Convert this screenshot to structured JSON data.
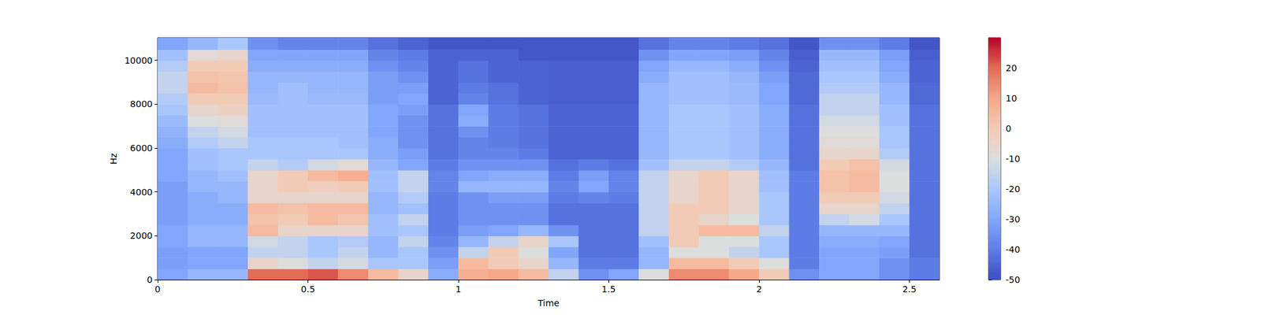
{
  "chart_data": {
    "type": "heatmap",
    "xlabel": "Time",
    "ylabel": "Hz",
    "xlim": [
      0,
      2.6
    ],
    "xticks": [
      0,
      0.5,
      1,
      1.5,
      2,
      2.5
    ],
    "ylim": [
      0,
      11025
    ],
    "yticks": [
      0,
      2000,
      4000,
      6000,
      8000,
      10000
    ],
    "colorbar": {
      "range": [
        -50,
        30
      ],
      "ticks": [
        -50,
        -40,
        -30,
        -20,
        -10,
        0,
        10,
        20
      ]
    },
    "time_edges": [
      0,
      0.1,
      0.2,
      0.3,
      0.4,
      0.5,
      0.6,
      0.7,
      0.8,
      0.9,
      1.0,
      1.1,
      1.2,
      1.3,
      1.4,
      1.5,
      1.6,
      1.7,
      1.8,
      1.9,
      2.0,
      2.1,
      2.2,
      2.3,
      2.4,
      2.5,
      2.6
    ],
    "freq_edges": [
      0,
      500,
      1000,
      1500,
      2000,
      2500,
      3000,
      3500,
      4000,
      4500,
      5000,
      5500,
      6000,
      6500,
      7000,
      7500,
      8000,
      8500,
      9000,
      9500,
      10000,
      10500,
      11025
    ],
    "values": [
      [
        -30,
        -32,
        -32,
        -30,
        -30,
        -32,
        -32,
        -32,
        -32,
        -30,
        -30,
        -30,
        -28,
        -26,
        -24,
        -20,
        -18,
        -15,
        -15,
        -18,
        -22,
        -30
      ],
      [
        -25,
        -30,
        -30,
        -25,
        -25,
        -28,
        -28,
        -28,
        -25,
        -25,
        -22,
        -22,
        -18,
        -15,
        -10,
        -5,
        0,
        5,
        3,
        0,
        -8,
        -25
      ],
      [
        -25,
        -30,
        -30,
        -25,
        -25,
        -28,
        -28,
        -25,
        -25,
        -22,
        -20,
        -20,
        -15,
        -12,
        -8,
        -3,
        0,
        3,
        2,
        0,
        -5,
        -20
      ],
      [
        20,
        -5,
        -15,
        -12,
        5,
        3,
        5,
        -5,
        -5,
        -5,
        -15,
        -20,
        -20,
        -22,
        -22,
        -22,
        -24,
        -25,
        -25,
        -28,
        -30,
        -35
      ],
      [
        20,
        -10,
        -15,
        -15,
        -5,
        0,
        3,
        -5,
        0,
        0,
        -18,
        -20,
        -20,
        -22,
        -22,
        -22,
        -22,
        -22,
        -25,
        -28,
        -30,
        -38
      ],
      [
        22,
        -15,
        -20,
        -20,
        -5,
        5,
        5,
        -5,
        -2,
        5,
        -12,
        -20,
        -20,
        -22,
        -22,
        -22,
        -24,
        -25,
        -25,
        -28,
        -30,
        -38
      ],
      [
        15,
        -12,
        -15,
        -18,
        -5,
        2,
        5,
        -5,
        0,
        8,
        -8,
        -20,
        -22,
        -22,
        -22,
        -22,
        -24,
        -25,
        -25,
        -28,
        -30,
        -38
      ],
      [
        5,
        -20,
        -25,
        -25,
        -22,
        -22,
        -25,
        -25,
        -22,
        -22,
        -25,
        -28,
        -28,
        -30,
        -30,
        -30,
        -32,
        -32,
        -32,
        -35,
        -38,
        -42
      ],
      [
        -5,
        -20,
        -20,
        -15,
        -20,
        -15,
        -22,
        -18,
        -15,
        -15,
        -30,
        -32,
        -35,
        -35,
        -35,
        -32,
        -30,
        -32,
        -35,
        -38,
        -40,
        -45
      ],
      [
        -28,
        -32,
        -35,
        -38,
        -40,
        -40,
        -40,
        -40,
        -38,
        -38,
        -40,
        -42,
        -42,
        -42,
        -42,
        -42,
        -45,
        -45,
        -45,
        -45,
        -45,
        -48
      ],
      [
        8,
        5,
        -15,
        -25,
        -32,
        -35,
        -35,
        -35,
        -25,
        -30,
        -35,
        -38,
        -38,
        -35,
        -28,
        -30,
        -38,
        -40,
        -42,
        -42,
        -45,
        -48
      ],
      [
        10,
        0,
        0,
        -15,
        -30,
        -35,
        -35,
        -32,
        -25,
        -28,
        -35,
        -38,
        -40,
        -40,
        -40,
        -40,
        -42,
        -42,
        -45,
        -45,
        -45,
        -48
      ],
      [
        5,
        -5,
        -10,
        -5,
        -25,
        -35,
        -35,
        -32,
        -25,
        -28,
        -35,
        -40,
        -42,
        -42,
        -42,
        -42,
        -45,
        -45,
        -45,
        -45,
        -48,
        -48
      ],
      [
        -15,
        -25,
        -30,
        -20,
        -35,
        -42,
        -42,
        -40,
        -38,
        -40,
        -42,
        -45,
        -45,
        -45,
        -45,
        -45,
        -46,
        -46,
        -46,
        -46,
        -48,
        -48
      ],
      [
        -35,
        -40,
        -42,
        -42,
        -42,
        -42,
        -42,
        -38,
        -30,
        -32,
        -40,
        -45,
        -45,
        -45,
        -45,
        -45,
        -46,
        -46,
        -46,
        -46,
        -48,
        -48
      ],
      [
        -30,
        -40,
        -42,
        -42,
        -42,
        -42,
        -42,
        -40,
        -38,
        -38,
        -42,
        -45,
        -45,
        -45,
        -45,
        -45,
        -46,
        -46,
        -46,
        -46,
        -48,
        -48
      ],
      [
        -10,
        -25,
        -25,
        -22,
        -15,
        -15,
        -15,
        -15,
        -15,
        -15,
        -22,
        -25,
        -25,
        -25,
        -25,
        -25,
        -25,
        -25,
        -28,
        -30,
        -35,
        -42
      ],
      [
        15,
        5,
        -10,
        0,
        0,
        0,
        0,
        -5,
        -5,
        -5,
        -15,
        -20,
        -20,
        -20,
        -20,
        -20,
        -22,
        -22,
        -22,
        -25,
        -30,
        -38
      ],
      [
        15,
        5,
        -10,
        -10,
        5,
        -5,
        0,
        0,
        0,
        0,
        -15,
        -20,
        -20,
        -20,
        -20,
        -20,
        -22,
        -22,
        -22,
        -25,
        -30,
        -38
      ],
      [
        10,
        0,
        -15,
        -10,
        5,
        -10,
        -5,
        -5,
        -5,
        -5,
        -18,
        -22,
        -22,
        -22,
        -22,
        -22,
        -24,
        -24,
        -25,
        -28,
        -32,
        -40
      ],
      [
        0,
        -10,
        -20,
        -20,
        -15,
        -20,
        -20,
        -20,
        -22,
        -22,
        -25,
        -28,
        -28,
        -28,
        -28,
        -28,
        -30,
        -30,
        -32,
        -35,
        -38,
        -42
      ],
      [
        -35,
        -40,
        -40,
        -40,
        -40,
        -40,
        -40,
        -40,
        -40,
        -40,
        -42,
        -42,
        -42,
        -42,
        -42,
        -42,
        -44,
        -44,
        -44,
        -45,
        -46,
        -48
      ],
      [
        -30,
        -30,
        -30,
        -28,
        -25,
        -15,
        -5,
        0,
        3,
        3,
        0,
        -5,
        -8,
        -10,
        -12,
        -15,
        -15,
        -18,
        -20,
        -22,
        -25,
        -35
      ],
      [
        -30,
        -30,
        -30,
        -28,
        -25,
        -12,
        -5,
        0,
        5,
        5,
        3,
        -5,
        -8,
        -10,
        -12,
        -15,
        -15,
        -18,
        -20,
        -22,
        -25,
        -35
      ],
      [
        -35,
        -35,
        -32,
        -30,
        -25,
        -20,
        -15,
        -12,
        -10,
        -10,
        -12,
        -18,
        -20,
        -20,
        -22,
        -22,
        -25,
        -25,
        -28,
        -30,
        -32,
        -40
      ],
      [
        -40,
        -40,
        -42,
        -42,
        -42,
        -42,
        -42,
        -42,
        -42,
        -42,
        -42,
        -42,
        -42,
        -42,
        -42,
        -42,
        -44,
        -44,
        -45,
        -45,
        -46,
        -48
      ]
    ]
  }
}
